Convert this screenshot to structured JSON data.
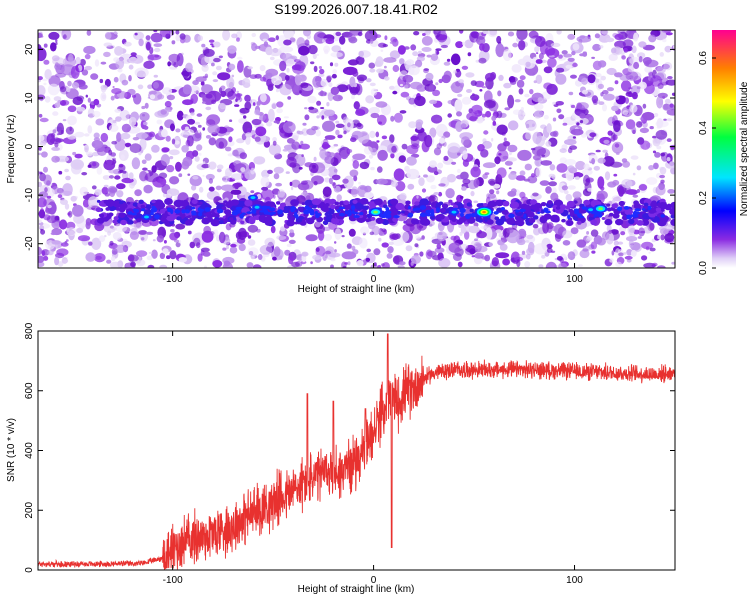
{
  "title": "S199.2026.007.18.41.R02",
  "chart_data": [
    {
      "type": "heatmap",
      "xlabel": "Height of straight line (km)",
      "ylabel": "Frequency (Hz)",
      "xlim": [
        -167,
        150
      ],
      "ylim": [
        -25,
        24
      ],
      "xticks": [
        -100,
        0,
        100
      ],
      "yticks": [
        -20,
        -10,
        0,
        10,
        20
      ],
      "colorbar": {
        "label": "Normalized spectral amplitude",
        "range": [
          0.0,
          0.68
        ],
        "ticks": [
          "0.0",
          "0.2",
          "0.4",
          "0.6"
        ]
      },
      "signal_band": {
        "description_visible": false,
        "frequency_hz": -13.5,
        "peaks": [
          {
            "x": -113,
            "y": -14.5,
            "amp": 0.32
          },
          {
            "x": -60,
            "y": -10.5,
            "amp": 0.3
          },
          {
            "x": -58,
            "y": -12.5,
            "amp": 0.28
          },
          {
            "x": 1,
            "y": -13.5,
            "amp": 0.45
          },
          {
            "x": 55,
            "y": -13.5,
            "amp": 0.62
          },
          {
            "x": 40,
            "y": -13.5,
            "amp": 0.3
          },
          {
            "x": 113,
            "y": -12.8,
            "amp": 0.45
          },
          {
            "x": 108,
            "y": -13,
            "amp": 0.3
          }
        ]
      }
    },
    {
      "type": "line",
      "xlabel": "Height of straight line (km)",
      "ylabel": "SNR (10 * v/v)",
      "xlim": [
        -167,
        150
      ],
      "ylim": [
        0,
        800
      ],
      "xticks": [
        -100,
        0,
        100
      ],
      "yticks": [
        0,
        200,
        400,
        600,
        800
      ],
      "series": [
        {
          "color": "#e8312f",
          "points": [
            [
              -167,
              20
            ],
            [
              -140,
              20
            ],
            [
              -115,
              22
            ],
            [
              -105,
              40
            ],
            [
              -95,
              95
            ],
            [
              -80,
              120
            ],
            [
              -70,
              150
            ],
            [
              -60,
              190
            ],
            [
              -50,
              230
            ],
            [
              -40,
              265
            ],
            [
              -35,
              290
            ],
            [
              -28,
              310
            ],
            [
              -22,
              330
            ],
            [
              -16,
              330
            ],
            [
              -10,
              360
            ],
            [
              -5,
              400
            ],
            [
              0,
              460
            ],
            [
              5,
              540
            ],
            [
              8,
              580
            ],
            [
              12,
              560
            ],
            [
              15,
              590
            ],
            [
              20,
              610
            ],
            [
              25,
              640
            ],
            [
              30,
              660
            ],
            [
              40,
              670
            ],
            [
              60,
              670
            ],
            [
              80,
              670
            ],
            [
              100,
              665
            ],
            [
              120,
              660
            ],
            [
              140,
              655
            ],
            [
              150,
              660
            ]
          ],
          "spikes": [
            {
              "x": -33,
              "y": 590
            },
            {
              "x": -20,
              "y": 565
            },
            {
              "x": -4,
              "y": 540
            },
            {
              "x": 7,
              "y": 790
            },
            {
              "x": 9,
              "y": 75
            }
          ]
        }
      ]
    }
  ]
}
